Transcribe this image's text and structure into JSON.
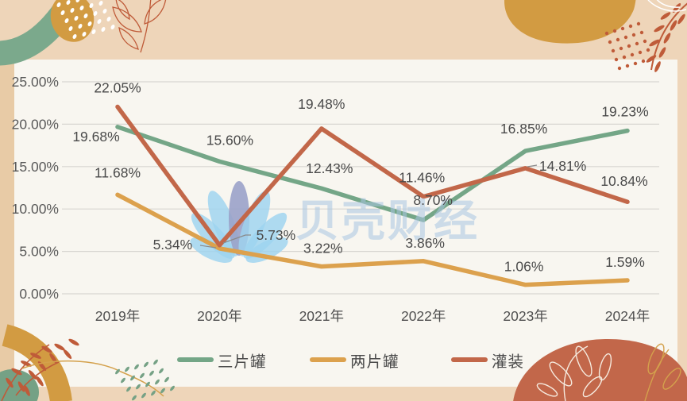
{
  "watermark": {
    "brand": "贝壳财经",
    "text_color": "#a9c6e2",
    "petal_color": "#9ed3ef",
    "petal_center_color": "#9aa2c9"
  },
  "chart_data": {
    "type": "line",
    "title": "",
    "xlabel": "",
    "ylabel": "",
    "categories": [
      "2019年",
      "2020年",
      "2021年",
      "2022年",
      "2023年",
      "2024年"
    ],
    "series": [
      {
        "name": "三片罐",
        "color": "#74a687",
        "values": [
          19.68,
          15.6,
          12.43,
          8.7,
          16.85,
          19.23
        ],
        "labels": [
          "19.68%",
          "15.60%",
          "12.43%",
          "8.70%",
          "16.85%",
          "19.23%"
        ]
      },
      {
        "name": "两片罐",
        "color": "#dca14d",
        "values": [
          11.68,
          5.34,
          3.22,
          3.86,
          1.06,
          1.59
        ],
        "labels": [
          "11.68%",
          "5.34%",
          "3.22%",
          "3.86%",
          "1.06%",
          "1.59%"
        ]
      },
      {
        "name": "灌装",
        "color": "#c26749",
        "values": [
          22.05,
          5.73,
          19.48,
          11.46,
          14.81,
          10.84
        ],
        "labels": [
          "22.05%",
          "5.73%",
          "19.48%",
          "11.46%",
          "14.81%",
          "10.84%"
        ]
      }
    ],
    "yticks": [
      "25.00%",
      "20.00%",
      "15.00%",
      "10.00%",
      "5.00%",
      "0.00%"
    ],
    "ylim": [
      0,
      25
    ],
    "grid": true,
    "legend_position": "bottom"
  }
}
